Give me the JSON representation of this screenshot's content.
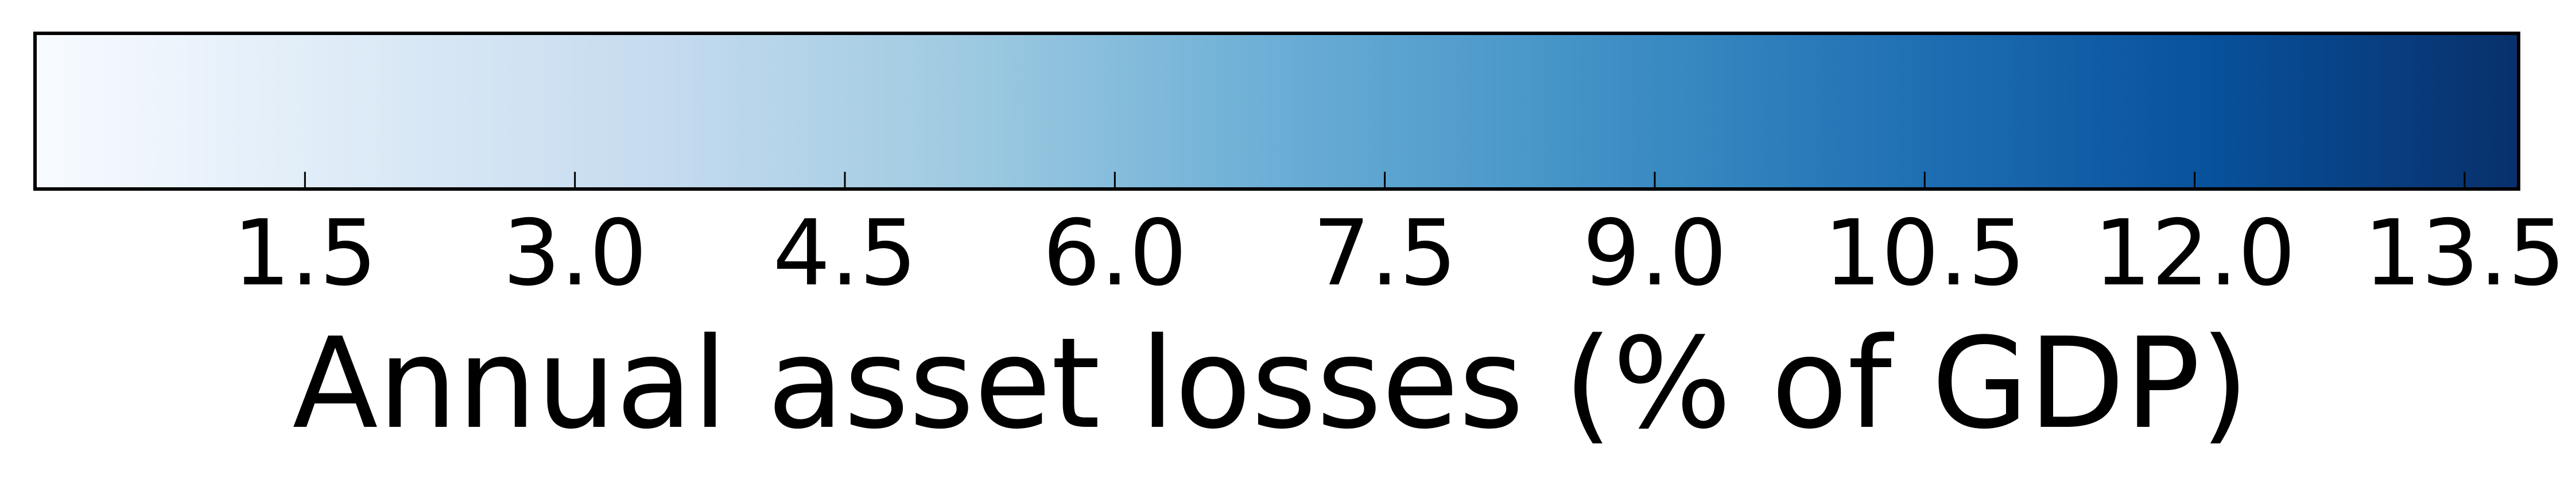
{
  "chart_data": {
    "type": "colorbar",
    "orientation": "horizontal",
    "colormap": "Blues",
    "color_stops": [
      "#f7fbff",
      "#deebf7",
      "#c6dbef",
      "#9ecae1",
      "#6baed6",
      "#4292c6",
      "#2171b5",
      "#08519c",
      "#08306b"
    ],
    "vmin": 0.0,
    "vmax": 13.8,
    "ticks": [
      1.5,
      3.0,
      4.5,
      6.0,
      7.5,
      9.0,
      10.5,
      12.0,
      13.5
    ],
    "tick_labels": [
      "1.5",
      "3.0",
      "4.5",
      "6.0",
      "7.5",
      "9.0",
      "10.5",
      "12.0",
      "13.5"
    ],
    "xlabel": "Annual asset losses (% of GDP)",
    "frame_color": "#000000"
  }
}
